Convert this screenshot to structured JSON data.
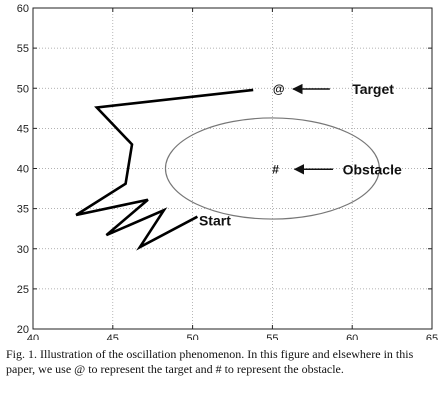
{
  "chart_data": {
    "type": "line",
    "title": "",
    "xlabel": "",
    "ylabel": "",
    "xlim": [
      40,
      65
    ],
    "ylim": [
      20,
      60
    ],
    "xticks": [
      40,
      45,
      50,
      55,
      60,
      65
    ],
    "yticks": [
      20,
      25,
      30,
      35,
      40,
      45,
      50,
      55,
      60
    ],
    "grid": true,
    "path": {
      "x": [
        53.8,
        44.0,
        46.2,
        45.8,
        42.7,
        47.2,
        44.6,
        48.2,
        46.7,
        50.3
      ],
      "y": [
        49.8,
        47.6,
        43.0,
        38.1,
        34.2,
        36.1,
        31.7,
        34.8,
        30.2,
        34.0
      ]
    },
    "obstacle": {
      "cx": 55.0,
      "cy": 40.0,
      "rx": 6.7,
      "ry": 6.3,
      "color": "#777777"
    },
    "annotations": [
      {
        "symbol": "@",
        "x": 55.4,
        "y": 49.9,
        "label": "Target",
        "arrow_from": [
          58.6,
          49.9
        ],
        "arrow_to": [
          56.3,
          49.9
        ],
        "label_x": 60.0
      },
      {
        "symbol": "#",
        "x": 55.2,
        "y": 39.9,
        "label": "Obstacle",
        "arrow_from": [
          58.8,
          39.9
        ],
        "arrow_to": [
          56.4,
          39.9
        ],
        "label_x": 59.4
      },
      {
        "symbol": "",
        "x": 50.3,
        "y": 34.0,
        "label": "Start",
        "label_x": 50.4,
        "label_y": 33.5
      }
    ]
  },
  "caption": "Fig. 1.   Illustration of the oscillation phenomenon. In this figure and elsewhere in this paper, we use @ to represent the target and # to represent the obstacle."
}
